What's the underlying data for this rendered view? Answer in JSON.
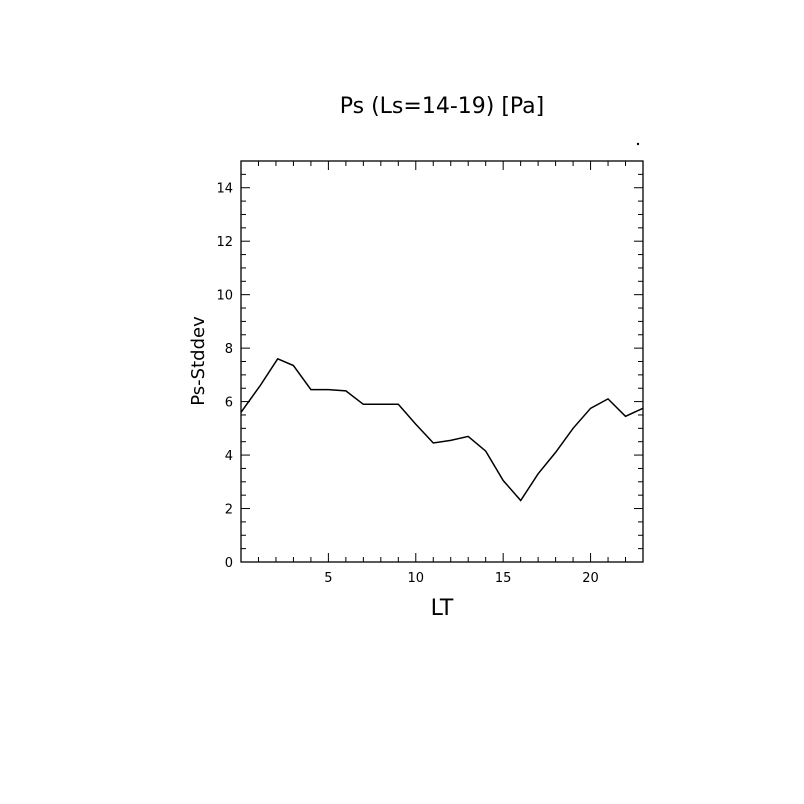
{
  "chart_data": {
    "type": "line",
    "title": "Ps (Ls=14-19) [Pa]",
    "xlabel": "LT",
    "ylabel": "Ps-Stddev",
    "xlim": [
      0,
      23
    ],
    "ylim": [
      0,
      15
    ],
    "xticks": [
      5,
      10,
      15,
      20
    ],
    "yticks": [
      0,
      2,
      4,
      6,
      8,
      10,
      12,
      14
    ],
    "series": [
      {
        "x": [
          0,
          1.1,
          2.1,
          3.0,
          4.0,
          5.0,
          6.0,
          7.0,
          8.0,
          9.0,
          10.0,
          11.0,
          12.0,
          13.0,
          14.0,
          15.0,
          16.0,
          17.0,
          18.0,
          19.0,
          20.0,
          21.0,
          22.0,
          23.0
        ],
        "y": [
          5.6,
          6.6,
          7.6,
          7.35,
          6.45,
          6.45,
          6.4,
          5.9,
          5.9,
          5.9,
          5.15,
          4.45,
          4.55,
          4.7,
          4.15,
          3.05,
          2.3,
          3.3,
          4.1,
          5.0,
          5.75,
          6.1,
          5.45,
          5.75
        ]
      }
    ]
  }
}
